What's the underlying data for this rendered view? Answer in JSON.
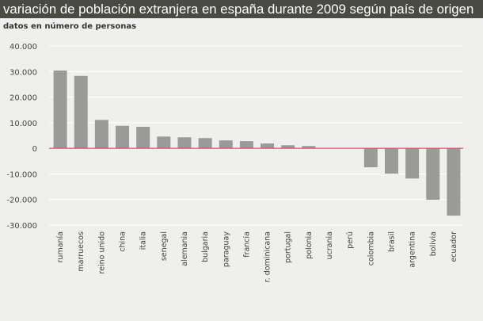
{
  "chart_data": {
    "type": "bar",
    "title": "variación de población extranjera en españa durante 2009 según país de origen",
    "subtitle": "datos en número de personas",
    "xlabel": "",
    "ylabel": "",
    "ylim": [
      -30000,
      40000
    ],
    "yticks": [
      40000,
      30000,
      20000,
      10000,
      0,
      -10000,
      -20000,
      -30000
    ],
    "ytick_labels": [
      "40.000",
      "30.000",
      "20.000",
      "10.000",
      "0",
      "-10.000",
      "-20.000",
      "-30.000"
    ],
    "grid": true,
    "categories": [
      "rumanía",
      "marruecos",
      "reino unido",
      "china",
      "italia",
      "senegal",
      "alemania",
      "bulgaria",
      "paraguay",
      "francia",
      "r. dominicana",
      "portugal",
      "polonia",
      "ucrania",
      "perú",
      "colombia",
      "brasil",
      "argentina",
      "bolivia",
      "ecuador"
    ],
    "values": [
      30400,
      28300,
      11100,
      8800,
      8400,
      4600,
      4300,
      4000,
      3100,
      2800,
      1900,
      1200,
      900,
      0,
      0,
      -7400,
      -9900,
      -11800,
      -20100,
      -26300
    ],
    "colors": {
      "bar": "#9a9a98",
      "zero_line": "#d9545c",
      "grid": "#ffffff",
      "title_bg": "#4a4a45"
    }
  }
}
